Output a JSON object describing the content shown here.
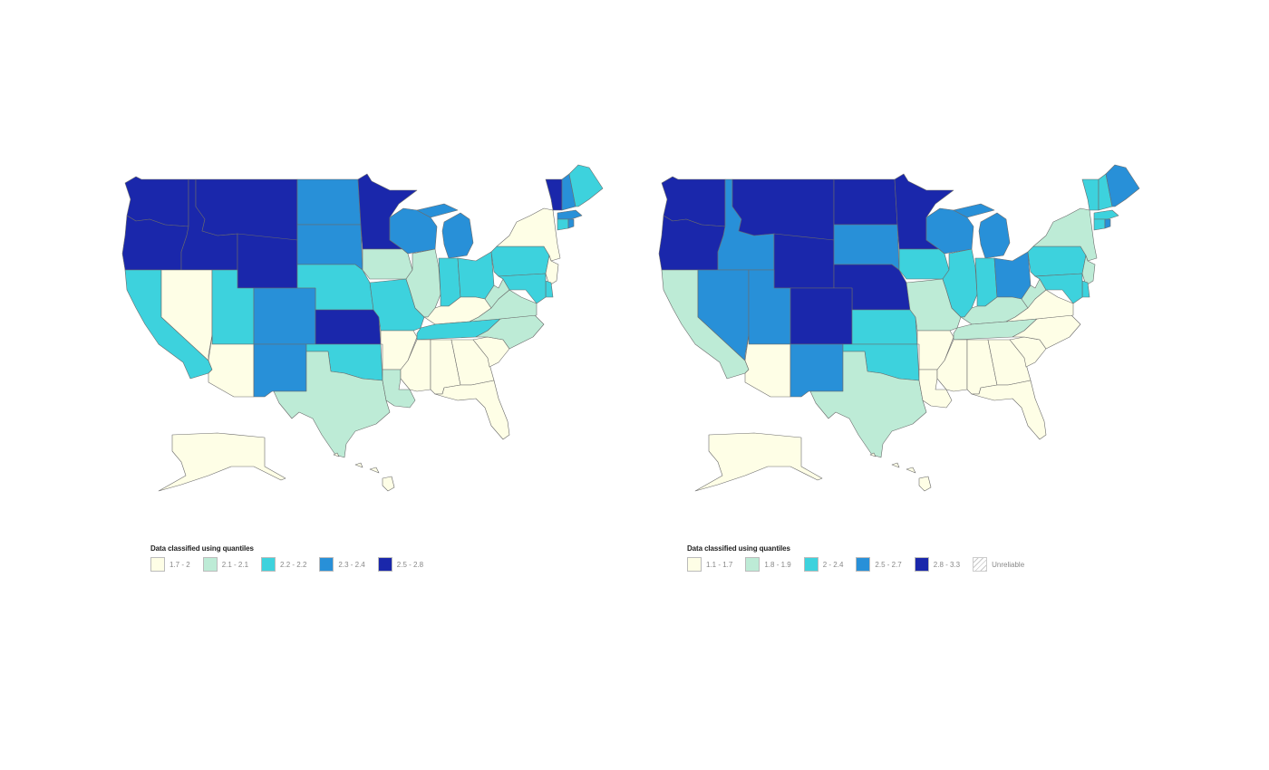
{
  "maps": [
    {
      "id": "left",
      "legend": {
        "title": "Data classified using quantiles",
        "classes": [
          {
            "label": "1.7 - 2",
            "color": "#fefee6"
          },
          {
            "label": "2.1 - 2.1",
            "color": "#bdebd6"
          },
          {
            "label": "2.2 - 2.2",
            "color": "#3dd2dd"
          },
          {
            "label": "2.3 - 2.4",
            "color": "#2890d8"
          },
          {
            "label": "2.5 - 2.8",
            "color": "#1a27ab"
          }
        ]
      },
      "states": {
        "WA": 4,
        "OR": 4,
        "ID": 4,
        "MT": 4,
        "WY": 4,
        "ND": 3,
        "SD": 3,
        "MN": 4,
        "CA": 2,
        "NV": 0,
        "UT": 2,
        "CO": 3,
        "NE": 2,
        "KS": 4,
        "IA": 1,
        "MO": 2,
        "AZ": 0,
        "NM": 3,
        "OK": 2,
        "TX": 1,
        "AR": 0,
        "LA": 1,
        "WI": 3,
        "MI": 3,
        "IL": 1,
        "IN": 2,
        "OH": 2,
        "KY": 0,
        "TN": 2,
        "MS": 0,
        "AL": 0,
        "GA": 0,
        "FL": 0,
        "SC": 0,
        "NC": 1,
        "VA": 1,
        "WV": 1,
        "PA": 2,
        "NY": 0,
        "NJ": 0,
        "DE": 2,
        "MD": 2,
        "VT": 4,
        "NH": 3,
        "ME": 2,
        "MA": 3,
        "CT": 2,
        "RI": 3,
        "AK": 0,
        "HI": 0
      }
    },
    {
      "id": "right",
      "legend": {
        "title": "Data classified using quantiles",
        "classes": [
          {
            "label": "1.1 - 1.7",
            "color": "#fefee6"
          },
          {
            "label": "1.8 - 1.9",
            "color": "#bdebd6"
          },
          {
            "label": "2 - 2.4",
            "color": "#3dd2dd"
          },
          {
            "label": "2.5 - 2.7",
            "color": "#2890d8"
          },
          {
            "label": "2.8 - 3.3",
            "color": "#1a27ab"
          }
        ],
        "unreliable_label": "Unreliable"
      },
      "states": {
        "WA": 4,
        "OR": 4,
        "ID": 3,
        "MT": 4,
        "WY": 4,
        "ND": 4,
        "SD": 3,
        "MN": 4,
        "CA": 1,
        "NV": 3,
        "UT": 3,
        "CO": 4,
        "NE": 4,
        "KS": 2,
        "IA": 2,
        "MO": 1,
        "AZ": 0,
        "NM": 3,
        "OK": 2,
        "TX": 1,
        "AR": 0,
        "LA": 0,
        "WI": 3,
        "MI": 3,
        "IL": 2,
        "IN": 2,
        "OH": 3,
        "KY": 1,
        "TN": 1,
        "MS": 0,
        "AL": 0,
        "GA": 0,
        "FL": 0,
        "SC": 0,
        "NC": 0,
        "VA": 0,
        "WV": 1,
        "PA": 2,
        "NY": 1,
        "NJ": 1,
        "DE": 2,
        "MD": 2,
        "VT": 2,
        "NH": 2,
        "ME": 3,
        "MA": 2,
        "CT": 2,
        "RI": 3,
        "AK": 0,
        "HI": 0
      }
    }
  ]
}
